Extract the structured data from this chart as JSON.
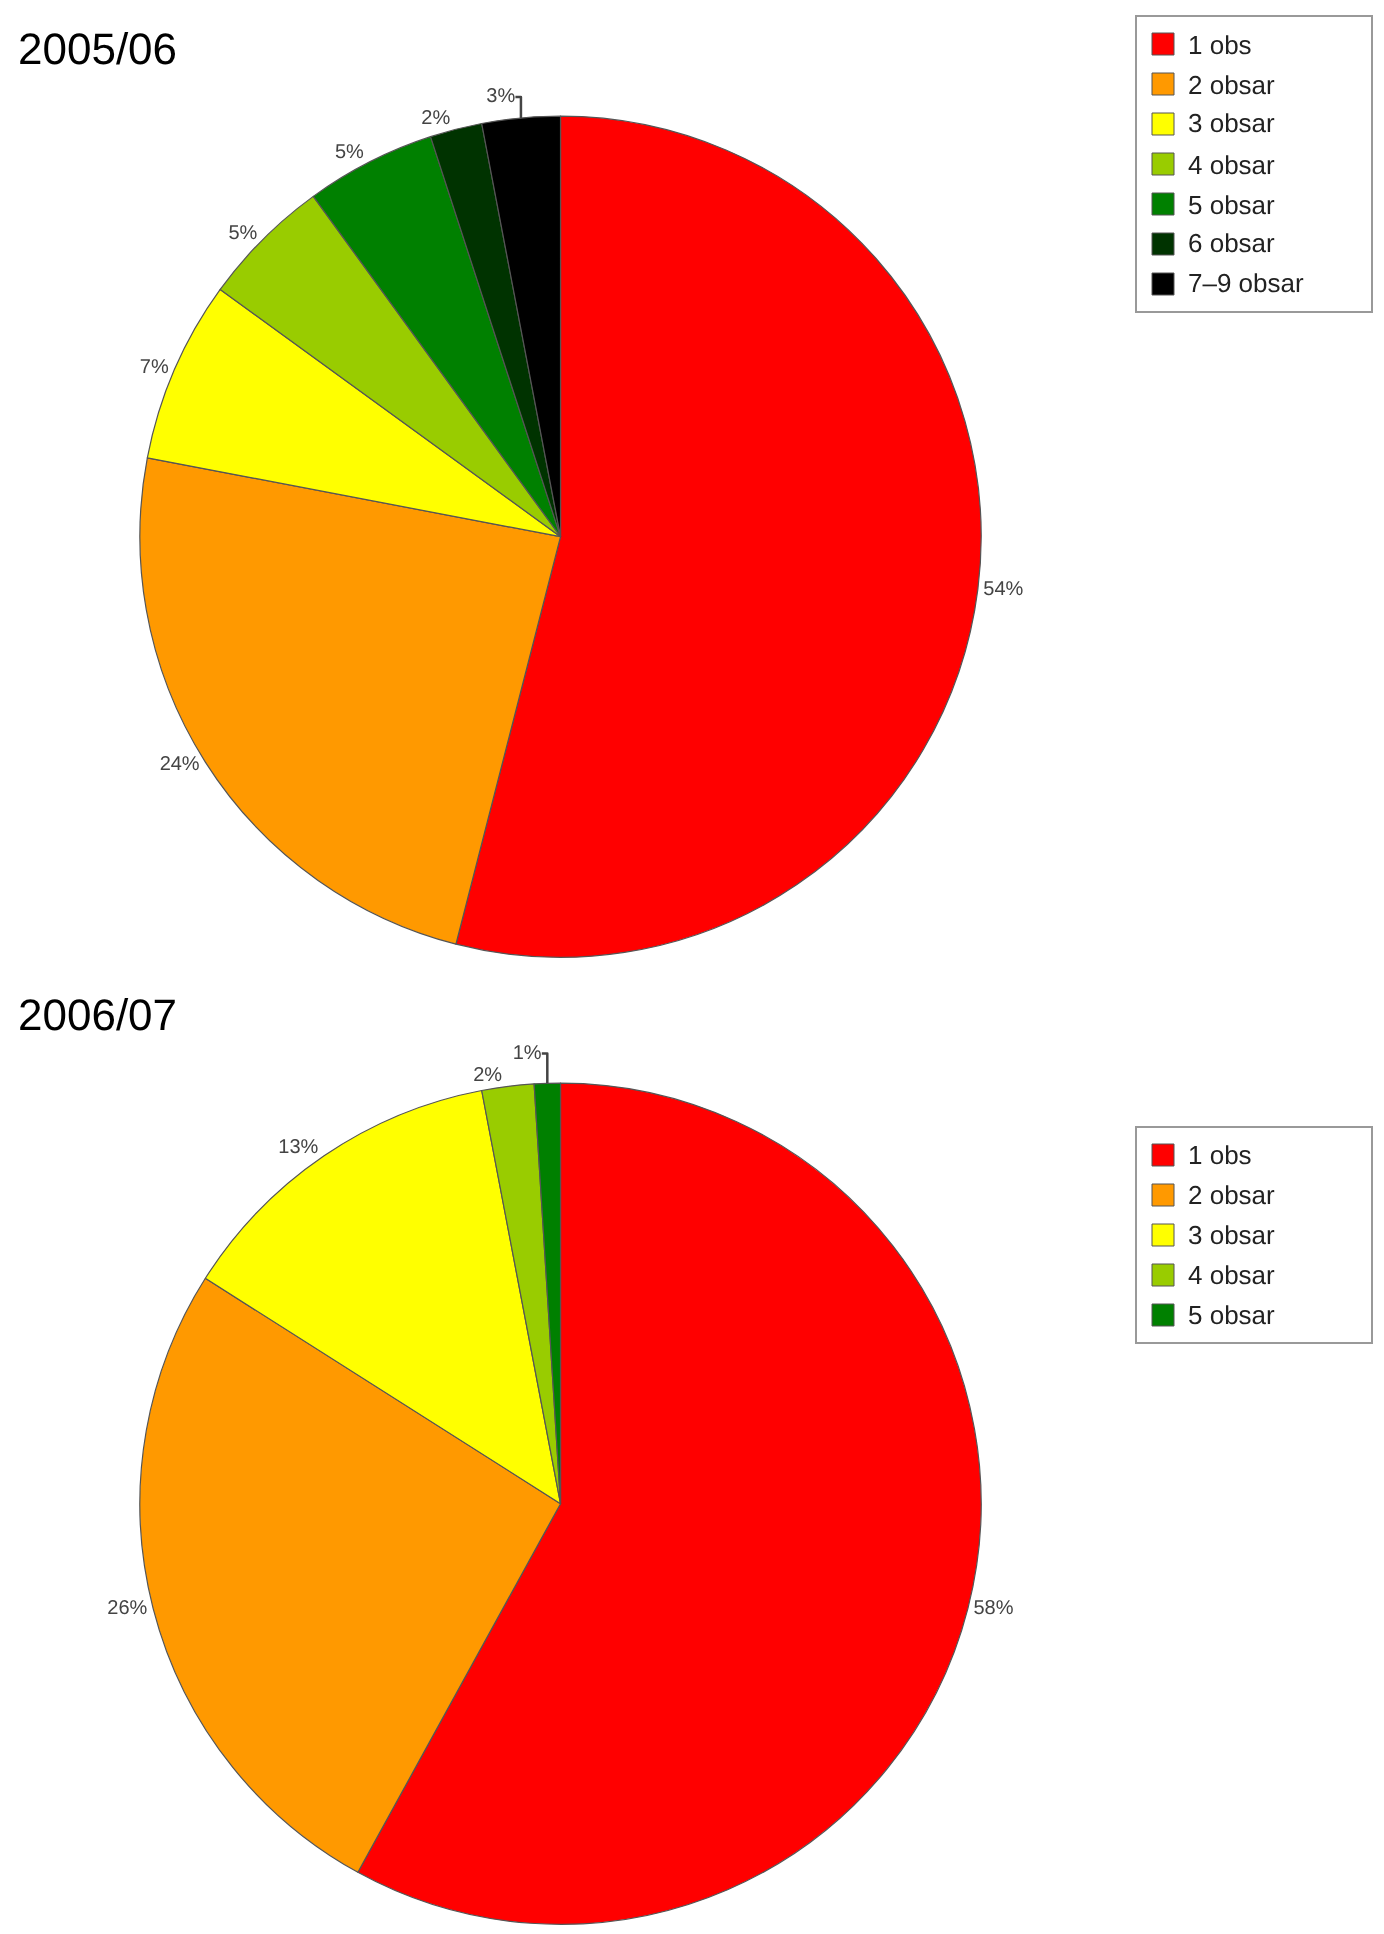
{
  "chart_data": [
    {
      "type": "pie",
      "title": "2005/06",
      "categories": [
        "1 obs",
        "2 obsar",
        "3 obsar",
        "4 obsar",
        "5 obsar",
        "6 obsar",
        "7–9 obsar"
      ],
      "values": [
        54,
        24,
        7,
        5,
        5,
        2,
        3
      ],
      "value_labels": [
        "54%",
        "24%",
        "7%",
        "5%",
        "5%",
        "2%",
        "3%"
      ],
      "colors": [
        "#ff0000",
        "#ff9900",
        "#ffff00",
        "#99cc00",
        "#008000",
        "#003300",
        "#000000"
      ],
      "legend": "top right"
    },
    {
      "type": "pie",
      "title": "2006/07",
      "categories": [
        "1 obs",
        "2 obsar",
        "3 obsar",
        "4 obsar",
        "5 obsar"
      ],
      "values": [
        58,
        26,
        13,
        2,
        1
      ],
      "value_labels": [
        "58%",
        "26%",
        "13%",
        "2%",
        "1%"
      ],
      "colors": [
        "#ff0000",
        "#ff9900",
        "#ffff00",
        "#99cc00",
        "#008000"
      ],
      "legend": "right"
    }
  ]
}
